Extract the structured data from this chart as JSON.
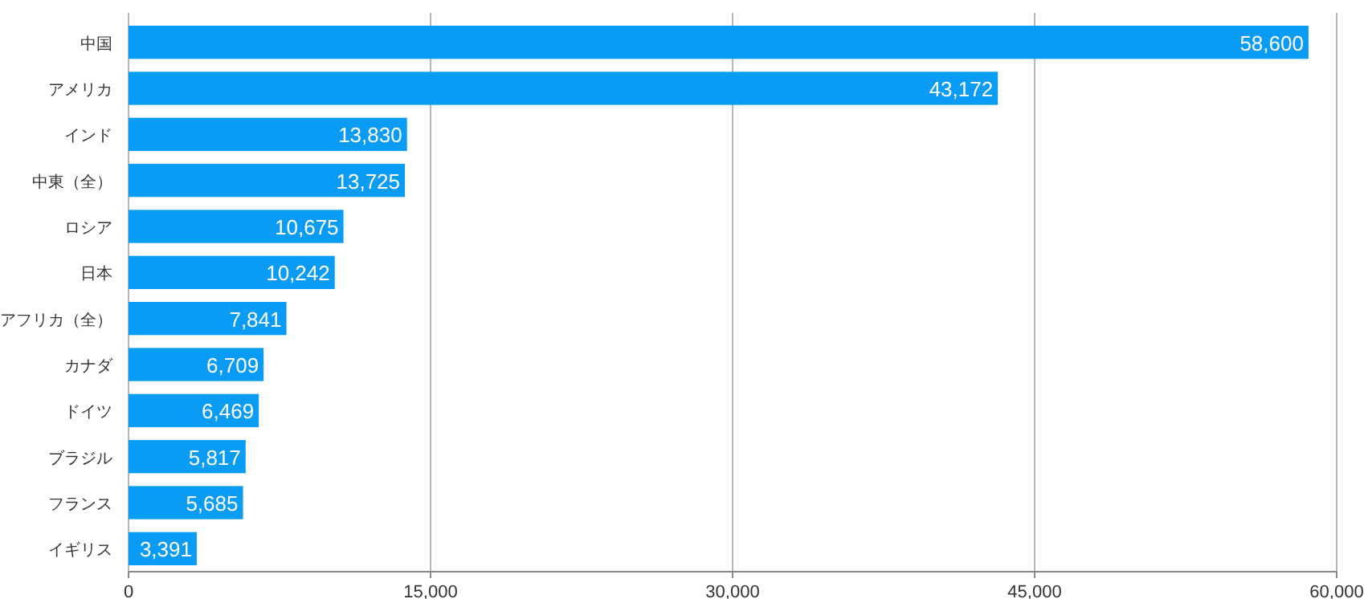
{
  "chart_data": {
    "type": "bar",
    "orientation": "horizontal",
    "categories": [
      "中国",
      "アメリカ",
      "インド",
      "中東（全）",
      "ロシア",
      "日本",
      "アフリカ（全）",
      "カナダ",
      "ドイツ",
      "ブラジル",
      "フランス",
      "イギリス"
    ],
    "values": [
      58600,
      43172,
      13830,
      13725,
      10675,
      10242,
      7841,
      6709,
      6469,
      5817,
      5685,
      3391
    ],
    "color": "#0a9cf5",
    "xlim": [
      0,
      60000
    ],
    "xticks": [
      0,
      {
        "value": 15000,
        "label": "15,000"
      },
      {
        "value": 30000,
        "label": "30,000"
      },
      {
        "value": 45000,
        "label": "45,000"
      },
      {
        "value": 60000,
        "label": "60,000"
      }
    ],
    "grid": "x",
    "value_labels": [
      "58,600",
      "43,172",
      "13,830",
      "13,725",
      "10,675",
      "10,242",
      "7,841",
      "6,709",
      "6,469",
      "5,817",
      "5,685",
      "3,391"
    ]
  }
}
